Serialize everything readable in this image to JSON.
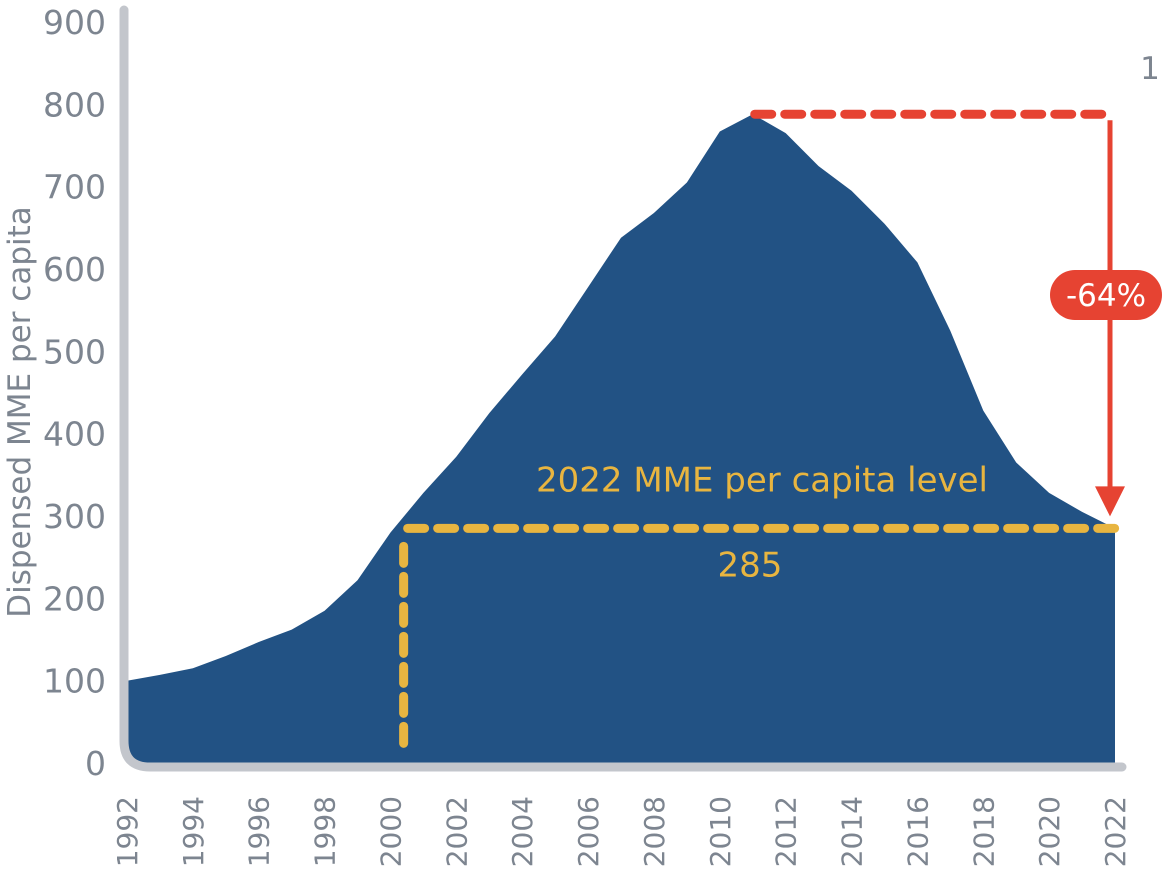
{
  "chart_data": {
    "type": "area",
    "title": "",
    "xlabel": "",
    "ylabel": "Dispensed MME per capita",
    "ylim": [
      0,
      900
    ],
    "yticks": [
      0,
      100,
      200,
      300,
      400,
      500,
      600,
      700,
      800,
      900
    ],
    "xticks": [
      "1992",
      "1994",
      "1996",
      "1998",
      "2000",
      "2002",
      "2004",
      "2006",
      "2008",
      "2010",
      "2012",
      "2014",
      "2016",
      "2018",
      "2020",
      "2022"
    ],
    "x": [
      1992,
      1993,
      1994,
      1995,
      1996,
      1997,
      1998,
      1999,
      2000,
      2001,
      2002,
      2003,
      2004,
      2005,
      2006,
      2007,
      2008,
      2009,
      2010,
      2011,
      2012,
      2013,
      2014,
      2015,
      2016,
      2017,
      2018,
      2019,
      2020,
      2021,
      2022
    ],
    "values": [
      100,
      107,
      115,
      130,
      147,
      162,
      185,
      222,
      280,
      328,
      372,
      425,
      472,
      518,
      578,
      638,
      668,
      705,
      767,
      788,
      765,
      725,
      695,
      655,
      608,
      525,
      428,
      365,
      328,
      305,
      285
    ],
    "color": "#225284",
    "grid": false,
    "annotations": {
      "level_label": "2022 MME per capita level",
      "level_value": "285",
      "level_value_numeric": 285,
      "level_cross_year": 2000.4,
      "peak_year": 2011,
      "peak_value": 788,
      "change_label": "-64%",
      "stray_label": "1",
      "level_color": "#e8b540",
      "change_color": "#e64332"
    }
  }
}
